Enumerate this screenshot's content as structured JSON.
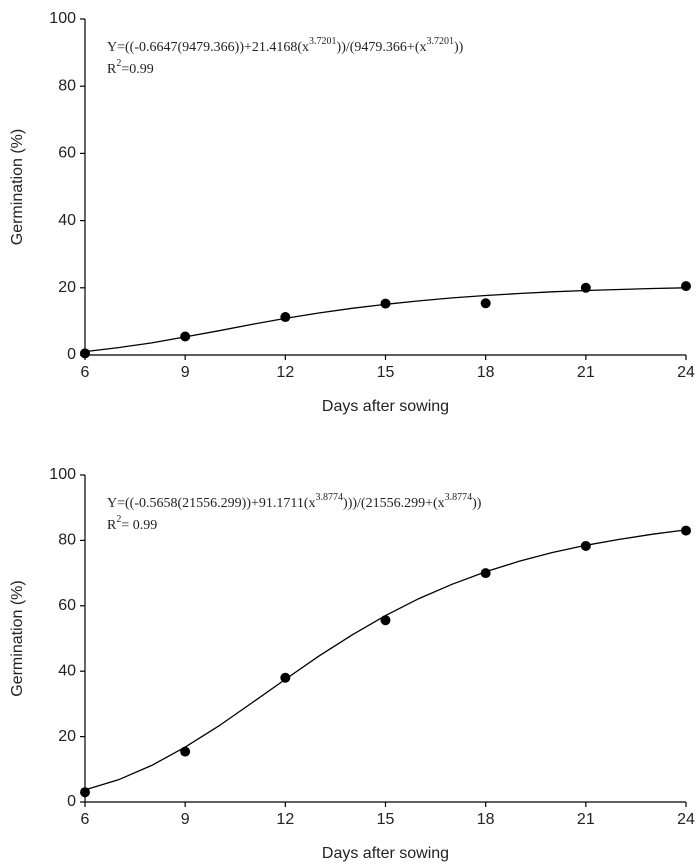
{
  "chart_data": [
    {
      "type": "scatter",
      "equation": [
        {
          "text": "Y=((-0.6647(9479.366))+21.4168(x"
        },
        {
          "text": "3.7201",
          "sup": true
        },
        {
          "text": "))/(9479.366+(x"
        },
        {
          "text": "3.7201",
          "sup": true
        },
        {
          "text": "))"
        }
      ],
      "r_squared": [
        {
          "text": "R"
        },
        {
          "text": "2",
          "sup": true
        },
        {
          "text": "=0.99"
        }
      ],
      "xlabel": "Days after sowing",
      "ylabel": "Germination (%)",
      "x": [
        6,
        9,
        12,
        15,
        18,
        21,
        24
      ],
      "values": [
        0.5,
        5.5,
        11.3,
        15.3,
        15.4,
        20,
        20.5
      ],
      "fit": {
        "x": [
          6,
          7,
          8,
          9,
          10,
          11,
          12,
          13,
          14,
          15,
          16,
          17,
          18,
          19,
          20,
          21,
          22,
          23,
          24
        ],
        "y": [
          1.0,
          2.2,
          3.6,
          5.4,
          7.2,
          9.1,
          10.9,
          12.5,
          13.9,
          15.1,
          16.1,
          17.0,
          17.7,
          18.3,
          18.8,
          19.2,
          19.5,
          19.8,
          20.0
        ]
      },
      "color": "#000000",
      "xlim": [
        6,
        24
      ],
      "xticks": [
        6,
        9,
        12,
        15,
        18,
        21,
        24
      ],
      "ylim": [
        0,
        100
      ],
      "yticks": [
        0,
        20,
        40,
        60,
        80,
        100
      ],
      "grid": false
    },
    {
      "type": "scatter",
      "equation": [
        {
          "text": "Y=((-0.5658(21556.299))+91.1711(x"
        },
        {
          "text": "3.8774",
          "sup": true
        },
        {
          "text": ")))/(21556.299+(x"
        },
        {
          "text": "3.8774",
          "sup": true
        },
        {
          "text": "))"
        }
      ],
      "r_squared": [
        {
          "text": "R"
        },
        {
          "text": "2",
          "sup": true
        },
        {
          "text": "= 0.99"
        }
      ],
      "xlabel": "Days after sowing",
      "ylabel": "Germination (%)",
      "x": [
        6,
        9,
        12,
        15,
        18,
        21,
        24
      ],
      "values": [
        3,
        15.4,
        38,
        55.6,
        70,
        78.3,
        83
      ],
      "fit": {
        "x": [
          6,
          7,
          8,
          9,
          10,
          11,
          12,
          13,
          14,
          15,
          16,
          17,
          18,
          19,
          20,
          21,
          22,
          23,
          24
        ],
        "y": [
          3.7,
          6.8,
          11.2,
          16.8,
          23.2,
          30.3,
          37.5,
          44.6,
          51.1,
          57.0,
          62.2,
          66.6,
          70.4,
          73.6,
          76.3,
          78.5,
          80.3,
          81.9,
          83.2
        ]
      },
      "color": "#000000",
      "xlim": [
        6,
        24
      ],
      "xticks": [
        6,
        9,
        12,
        15,
        18,
        21,
        24
      ],
      "ylim": [
        0,
        100
      ],
      "yticks": [
        0,
        20,
        40,
        60,
        80,
        100
      ],
      "grid": false
    }
  ]
}
